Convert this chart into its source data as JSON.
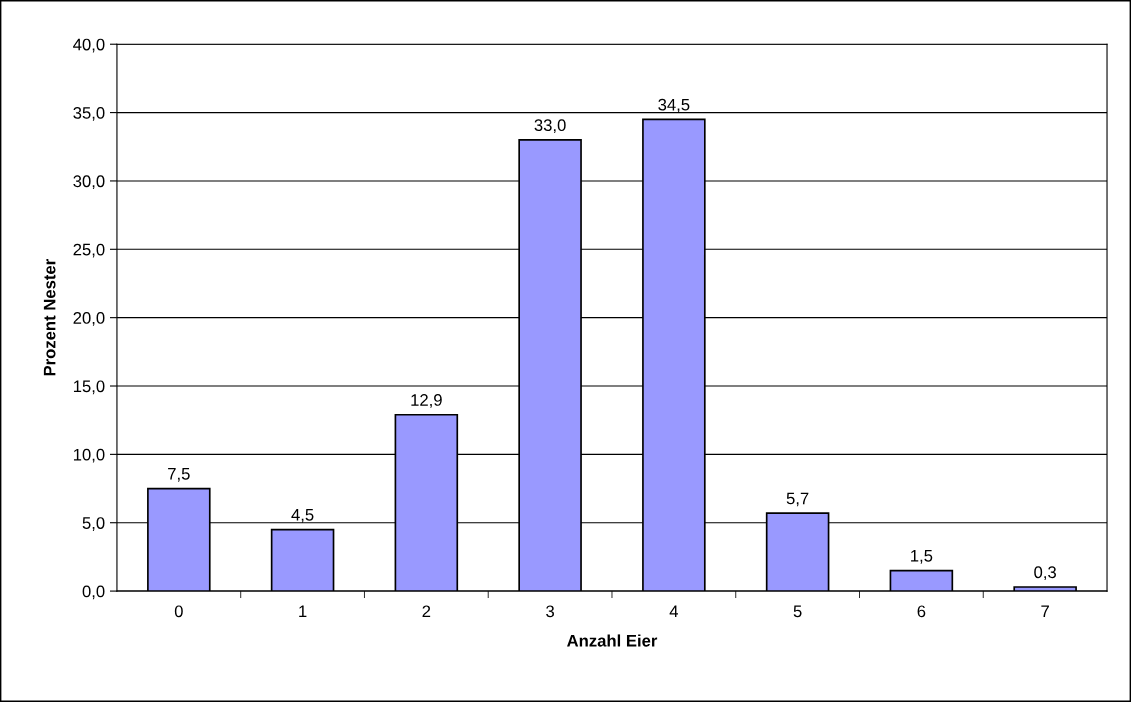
{
  "chart_data": {
    "type": "bar",
    "xlabel": "Anzahl Eier",
    "ylabel": "Prozent Nester",
    "categories": [
      "0",
      "1",
      "2",
      "3",
      "4",
      "5",
      "6",
      "7"
    ],
    "values": [
      7.5,
      4.5,
      12.9,
      33.0,
      34.5,
      5.7,
      1.5,
      0.3
    ],
    "value_labels": [
      "7,5",
      "4,5",
      "12,9",
      "33,0",
      "34,5",
      "5,7",
      "1,5",
      "0,3"
    ],
    "color": "#9999ff",
    "ylim": [
      0,
      40
    ],
    "yticks": [
      {
        "value": 0,
        "label": "0,0"
      },
      {
        "value": 5,
        "label": "5,0"
      },
      {
        "value": 10,
        "label": "10,0"
      },
      {
        "value": 15,
        "label": "15,0"
      },
      {
        "value": 20,
        "label": "20,0"
      },
      {
        "value": 25,
        "label": "25,0"
      },
      {
        "value": 30,
        "label": "30,0"
      },
      {
        "value": 35,
        "label": "35,0"
      },
      {
        "value": 40,
        "label": "40,0"
      }
    ],
    "grid": "y",
    "legend": false
  }
}
